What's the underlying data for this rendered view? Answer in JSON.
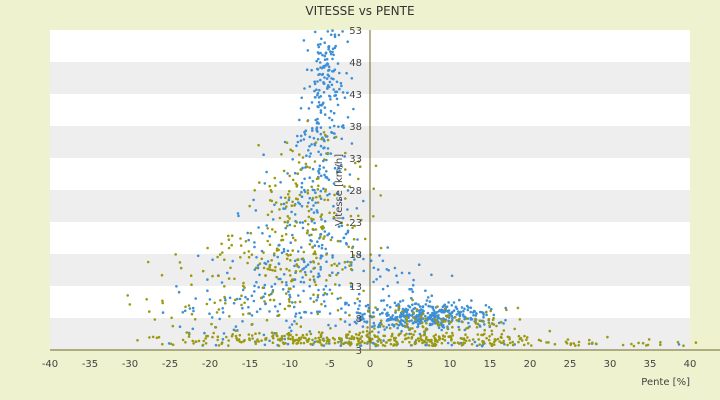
{
  "chart_data": {
    "type": "scatter",
    "title": "VITESSE vs PENTE",
    "xlabel": "Pente [%]",
    "ylabel": "Vitesse [km/h]",
    "xlim": [
      -40,
      40
    ],
    "ylim": [
      3,
      53
    ],
    "x_ticks": [
      -40,
      -35,
      -30,
      -25,
      -20,
      -15,
      -10,
      -5,
      0,
      5,
      10,
      15,
      20,
      25,
      30,
      35,
      40
    ],
    "y_ticks": [
      3,
      8,
      13,
      18,
      23,
      28,
      33,
      38,
      43,
      48,
      53
    ],
    "grid": "alternating horizontal bands",
    "legend": "none",
    "colors": {
      "series_blue": "#3d8fd6",
      "series_olive": "#9a9a12",
      "band": "#eeeeee",
      "plot_bg": "#ffffff",
      "axis": "#6b6b2a"
    },
    "series": [
      {
        "color": "#3d8fd6",
        "clusters": [
          {
            "cx": -5.5,
            "cy": 46,
            "sx": 1.2,
            "sy": 4,
            "n": 150
          },
          {
            "cx": -6.5,
            "cy": 32,
            "sx": 1.8,
            "sy": 6,
            "n": 120
          },
          {
            "cx": -8,
            "cy": 18,
            "sx": 3.5,
            "sy": 6,
            "n": 170
          },
          {
            "cx": -14,
            "cy": 10,
            "sx": 6,
            "sy": 3.5,
            "n": 110
          },
          {
            "cx": 7,
            "cy": 8.3,
            "sx": 4,
            "sy": 1.1,
            "n": 380
          },
          {
            "cx": 3,
            "cy": 13,
            "sx": 3,
            "sy": 2.5,
            "n": 40
          },
          {
            "cx": 5,
            "cy": 3.8,
            "sx": 14,
            "sy": 0.3,
            "n": 60
          }
        ]
      },
      {
        "color": "#9a9a12",
        "clusters": [
          {
            "cx": -7.5,
            "cy": 26,
            "sx": 3.5,
            "sy": 6,
            "n": 170
          },
          {
            "cx": -12,
            "cy": 14,
            "sx": 5,
            "sy": 5,
            "n": 130
          },
          {
            "cx": 0,
            "cy": 4.5,
            "sx": 12,
            "sy": 0.6,
            "n": 340
          },
          {
            "cx": 9,
            "cy": 7,
            "sx": 5,
            "sy": 1.5,
            "n": 120
          },
          {
            "cx": -22,
            "cy": 10,
            "sx": 5,
            "sy": 4,
            "n": 40
          },
          {
            "cx": 25,
            "cy": 4,
            "sx": 10,
            "sy": 0.4,
            "n": 50
          }
        ]
      }
    ]
  }
}
